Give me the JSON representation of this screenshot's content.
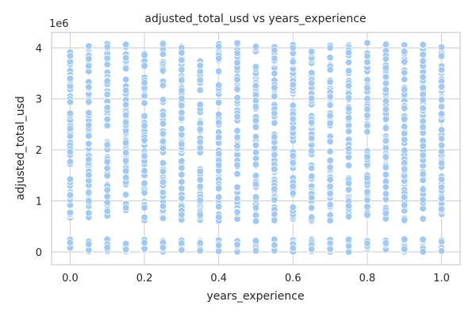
{
  "chart_data": {
    "type": "scatter",
    "title": "adjusted_total_usd vs years_experience",
    "xlabel": "years_experience",
    "ylabel": "adjusted_total_usd",
    "y_offset_label": "1e6",
    "xlim": [
      -0.05,
      1.05
    ],
    "ylim": [
      -250000,
      4300000
    ],
    "x_ticks": [
      0.0,
      0.2,
      0.4,
      0.6,
      0.8,
      1.0
    ],
    "x_tick_labels": [
      "0.0",
      "0.2",
      "0.4",
      "0.6",
      "0.8",
      "1.0"
    ],
    "y_ticks": [
      0,
      1000000,
      2000000,
      3000000,
      4000000
    ],
    "y_tick_labels": [
      "0",
      "1",
      "2",
      "3",
      "4"
    ],
    "grid": true,
    "point_color": "#a1c9f4",
    "point_edge_color": "#ffffff",
    "series": [
      {
        "x_columns": [
          0.0,
          0.05,
          0.1,
          0.15,
          0.2,
          0.25,
          0.3,
          0.35,
          0.4,
          0.45,
          0.5,
          0.55,
          0.6,
          0.65,
          0.7,
          0.75,
          0.8,
          0.85,
          0.9,
          0.95,
          1.0
        ],
        "y_clusters": [
          {
            "low": 0,
            "high": 250000
          },
          {
            "low": 600000,
            "high": 4100000
          }
        ]
      }
    ]
  }
}
